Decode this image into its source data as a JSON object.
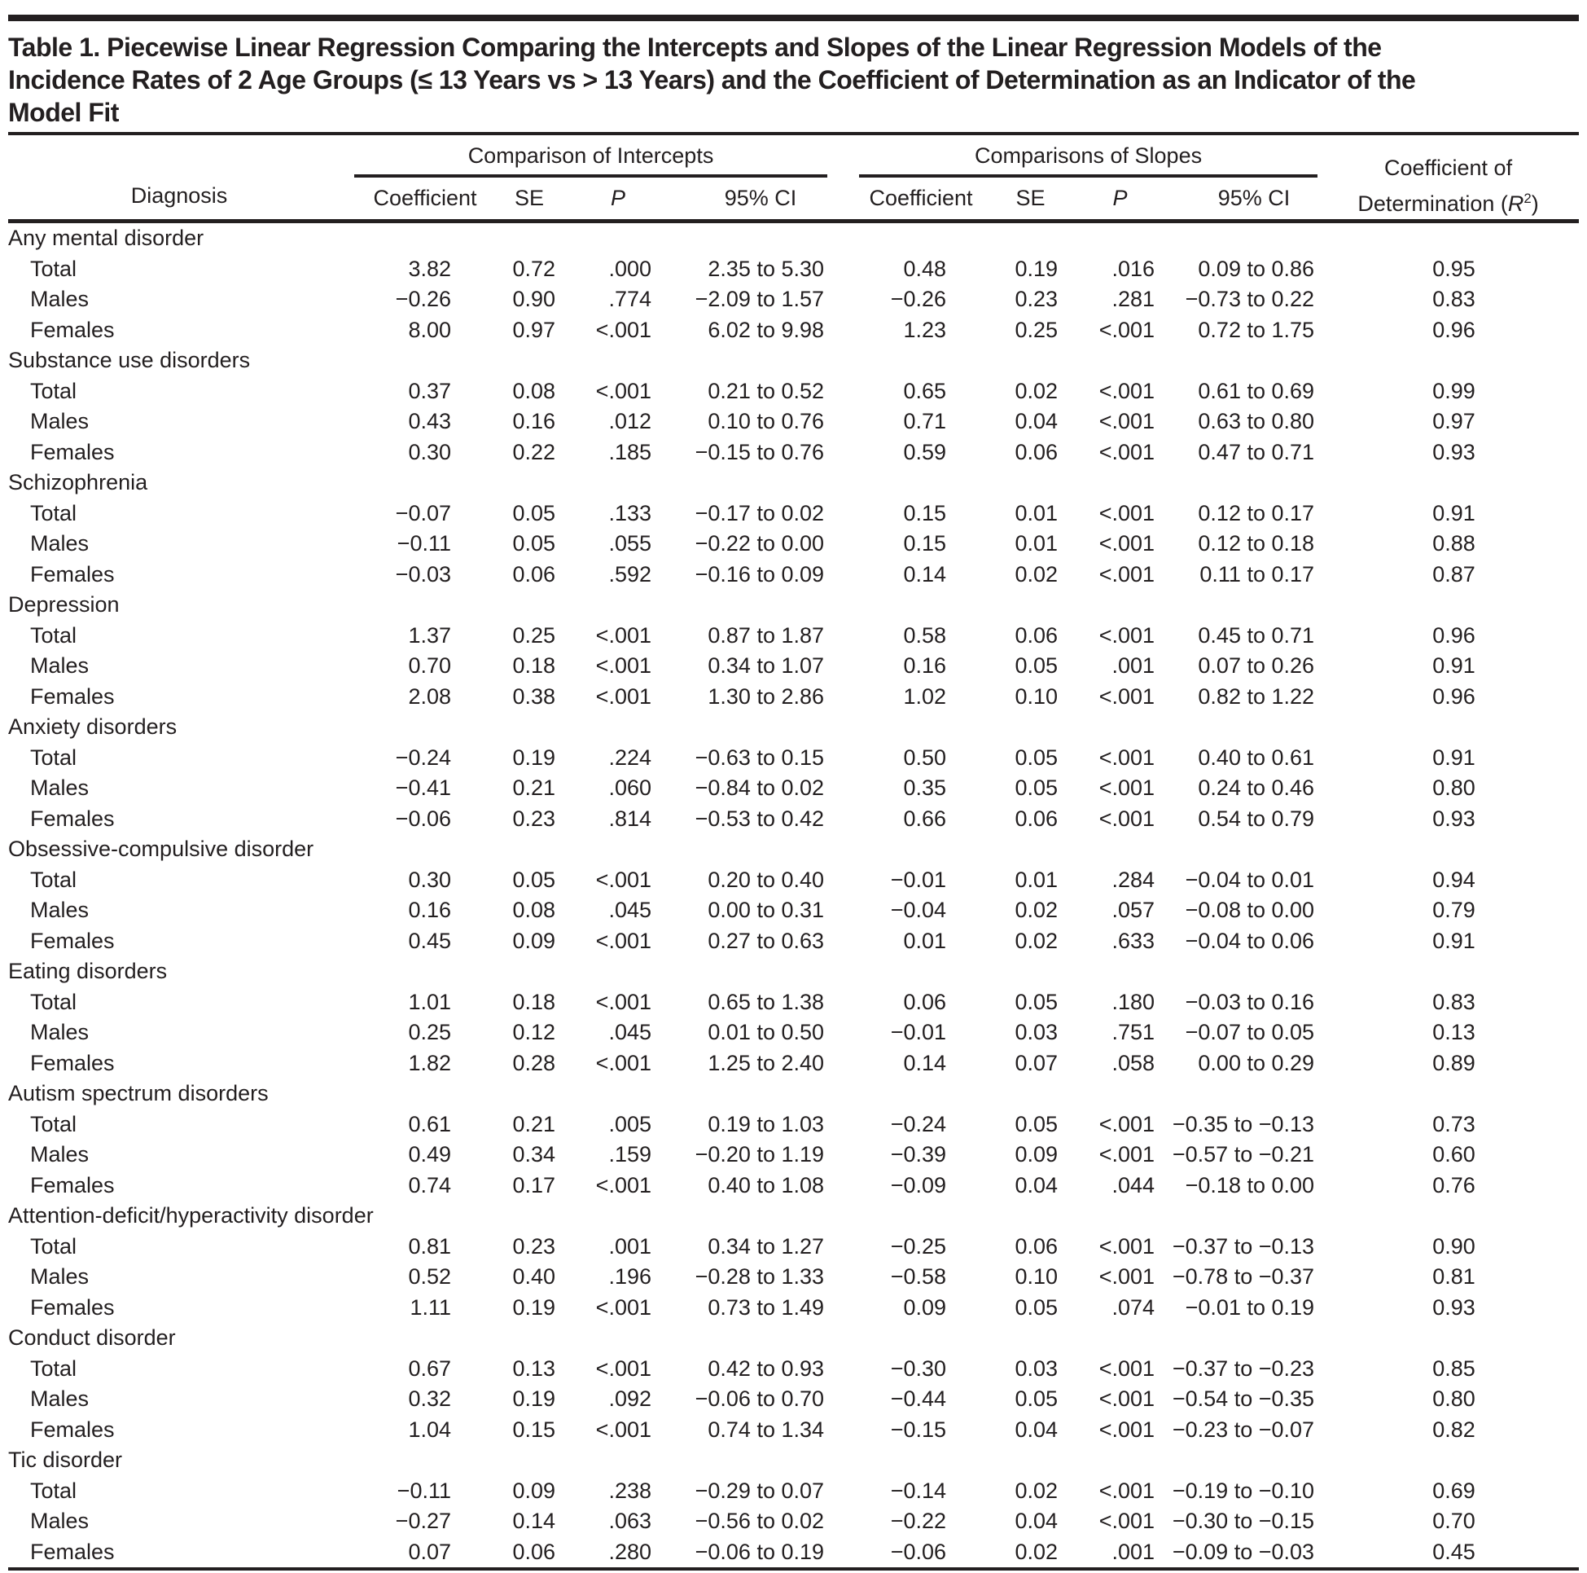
{
  "colors": {
    "ink": "#231f20",
    "background": "#ffffff"
  },
  "title_lines": [
    "Table 1. Piecewise Linear Regression Comparing the Intercepts and Slopes of the Linear Regression Models of the",
    "Incidence Rates of 2 Age Groups (≤ 13 Years vs > 13 Years) and the Coefficient of Determination as an Indicator of the",
    "Model Fit"
  ],
  "header": {
    "diagnosis": "Diagnosis",
    "group_intercepts": "Comparison of Intercepts",
    "group_slopes": "Comparisons of Slopes",
    "sub": {
      "coefficient": "Coefficient",
      "se": "SE",
      "p": "P",
      "ci": "95% CI"
    },
    "r2": {
      "line1": "Coefficient of",
      "prefix": "Determination (",
      "symbol": "R",
      "sup": "2",
      "close": ")"
    }
  },
  "table": {
    "groups": [
      {
        "label": "Any mental disorder",
        "rows": [
          {
            "label": "Total",
            "intercept": {
              "coef": "3.82",
              "se": "0.72",
              "p": ".000",
              "ci": "2.35 to 5.30"
            },
            "slope": {
              "coef": "0.48",
              "se": "0.19",
              "p": ".016",
              "ci": "0.09 to 0.86"
            },
            "r2": "0.95"
          },
          {
            "label": "Males",
            "intercept": {
              "coef": "−0.26",
              "se": "0.90",
              "p": ".774",
              "ci": "−2.09 to 1.57"
            },
            "slope": {
              "coef": "−0.26",
              "se": "0.23",
              "p": ".281",
              "ci": "−0.73 to 0.22"
            },
            "r2": "0.83"
          },
          {
            "label": "Females",
            "intercept": {
              "coef": "8.00",
              "se": "0.97",
              "p": "<.001",
              "ci": "6.02 to 9.98"
            },
            "slope": {
              "coef": "1.23",
              "se": "0.25",
              "p": "<.001",
              "ci": "0.72 to 1.75"
            },
            "r2": "0.96"
          }
        ]
      },
      {
        "label": "Substance use disorders",
        "rows": [
          {
            "label": "Total",
            "intercept": {
              "coef": "0.37",
              "se": "0.08",
              "p": "<.001",
              "ci": "0.21 to 0.52"
            },
            "slope": {
              "coef": "0.65",
              "se": "0.02",
              "p": "<.001",
              "ci": "0.61 to 0.69"
            },
            "r2": "0.99"
          },
          {
            "label": "Males",
            "intercept": {
              "coef": "0.43",
              "se": "0.16",
              "p": ".012",
              "ci": "0.10 to 0.76"
            },
            "slope": {
              "coef": "0.71",
              "se": "0.04",
              "p": "<.001",
              "ci": "0.63 to 0.80"
            },
            "r2": "0.97"
          },
          {
            "label": "Females",
            "intercept": {
              "coef": "0.30",
              "se": "0.22",
              "p": ".185",
              "ci": "−0.15 to 0.76"
            },
            "slope": {
              "coef": "0.59",
              "se": "0.06",
              "p": "<.001",
              "ci": "0.47 to 0.71"
            },
            "r2": "0.93"
          }
        ]
      },
      {
        "label": "Schizophrenia",
        "rows": [
          {
            "label": "Total",
            "intercept": {
              "coef": "−0.07",
              "se": "0.05",
              "p": ".133",
              "ci": "−0.17 to 0.02"
            },
            "slope": {
              "coef": "0.15",
              "se": "0.01",
              "p": "<.001",
              "ci": "0.12 to 0.17"
            },
            "r2": "0.91"
          },
          {
            "label": "Males",
            "intercept": {
              "coef": "−0.11",
              "se": "0.05",
              "p": ".055",
              "ci": "−0.22 to 0.00"
            },
            "slope": {
              "coef": "0.15",
              "se": "0.01",
              "p": "<.001",
              "ci": "0.12 to 0.18"
            },
            "r2": "0.88"
          },
          {
            "label": "Females",
            "intercept": {
              "coef": "−0.03",
              "se": "0.06",
              "p": ".592",
              "ci": "−0.16 to 0.09"
            },
            "slope": {
              "coef": "0.14",
              "se": "0.02",
              "p": "<.001",
              "ci": "0.11 to 0.17"
            },
            "r2": "0.87"
          }
        ]
      },
      {
        "label": "Depression",
        "rows": [
          {
            "label": "Total",
            "intercept": {
              "coef": "1.37",
              "se": "0.25",
              "p": "<.001",
              "ci": "0.87 to 1.87"
            },
            "slope": {
              "coef": "0.58",
              "se": "0.06",
              "p": "<.001",
              "ci": "0.45 to 0.71"
            },
            "r2": "0.96"
          },
          {
            "label": "Males",
            "intercept": {
              "coef": "0.70",
              "se": "0.18",
              "p": "<.001",
              "ci": "0.34 to 1.07"
            },
            "slope": {
              "coef": "0.16",
              "se": "0.05",
              "p": ".001",
              "ci": "0.07 to 0.26"
            },
            "r2": "0.91"
          },
          {
            "label": "Females",
            "intercept": {
              "coef": "2.08",
              "se": "0.38",
              "p": "<.001",
              "ci": "1.30 to 2.86"
            },
            "slope": {
              "coef": "1.02",
              "se": "0.10",
              "p": "<.001",
              "ci": "0.82 to 1.22"
            },
            "r2": "0.96"
          }
        ]
      },
      {
        "label": "Anxiety disorders",
        "rows": [
          {
            "label": "Total",
            "intercept": {
              "coef": "−0.24",
              "se": "0.19",
              "p": ".224",
              "ci": "−0.63 to 0.15"
            },
            "slope": {
              "coef": "0.50",
              "se": "0.05",
              "p": "<.001",
              "ci": "0.40 to 0.61"
            },
            "r2": "0.91"
          },
          {
            "label": "Males",
            "intercept": {
              "coef": "−0.41",
              "se": "0.21",
              "p": ".060",
              "ci": "−0.84 to 0.02"
            },
            "slope": {
              "coef": "0.35",
              "se": "0.05",
              "p": "<.001",
              "ci": "0.24 to 0.46"
            },
            "r2": "0.80"
          },
          {
            "label": "Females",
            "intercept": {
              "coef": "−0.06",
              "se": "0.23",
              "p": ".814",
              "ci": "−0.53 to 0.42"
            },
            "slope": {
              "coef": "0.66",
              "se": "0.06",
              "p": "<.001",
              "ci": "0.54 to 0.79"
            },
            "r2": "0.93"
          }
        ]
      },
      {
        "label": "Obsessive-compulsive disorder",
        "rows": [
          {
            "label": "Total",
            "intercept": {
              "coef": "0.30",
              "se": "0.05",
              "p": "<.001",
              "ci": "0.20 to 0.40"
            },
            "slope": {
              "coef": "−0.01",
              "se": "0.01",
              "p": ".284",
              "ci": "−0.04 to 0.01"
            },
            "r2": "0.94"
          },
          {
            "label": "Males",
            "intercept": {
              "coef": "0.16",
              "se": "0.08",
              "p": ".045",
              "ci": "0.00 to 0.31"
            },
            "slope": {
              "coef": "−0.04",
              "se": "0.02",
              "p": ".057",
              "ci": "−0.08 to 0.00"
            },
            "r2": "0.79"
          },
          {
            "label": "Females",
            "intercept": {
              "coef": "0.45",
              "se": "0.09",
              "p": "<.001",
              "ci": "0.27 to 0.63"
            },
            "slope": {
              "coef": "0.01",
              "se": "0.02",
              "p": ".633",
              "ci": "−0.04 to 0.06"
            },
            "r2": "0.91"
          }
        ]
      },
      {
        "label": "Eating disorders",
        "rows": [
          {
            "label": "Total",
            "intercept": {
              "coef": "1.01",
              "se": "0.18",
              "p": "<.001",
              "ci": "0.65 to 1.38"
            },
            "slope": {
              "coef": "0.06",
              "se": "0.05",
              "p": ".180",
              "ci": "−0.03 to 0.16"
            },
            "r2": "0.83"
          },
          {
            "label": "Males",
            "intercept": {
              "coef": "0.25",
              "se": "0.12",
              "p": ".045",
              "ci": "0.01 to 0.50"
            },
            "slope": {
              "coef": "−0.01",
              "se": "0.03",
              "p": ".751",
              "ci": "−0.07 to 0.05"
            },
            "r2": "0.13"
          },
          {
            "label": "Females",
            "intercept": {
              "coef": "1.82",
              "se": "0.28",
              "p": "<.001",
              "ci": "1.25 to 2.40"
            },
            "slope": {
              "coef": "0.14",
              "se": "0.07",
              "p": ".058",
              "ci": "0.00 to 0.29"
            },
            "r2": "0.89"
          }
        ]
      },
      {
        "label": "Autism spectrum disorders",
        "rows": [
          {
            "label": "Total",
            "intercept": {
              "coef": "0.61",
              "se": "0.21",
              "p": ".005",
              "ci": "0.19 to 1.03"
            },
            "slope": {
              "coef": "−0.24",
              "se": "0.05",
              "p": "<.001",
              "ci": "−0.35 to −0.13"
            },
            "r2": "0.73"
          },
          {
            "label": "Males",
            "intercept": {
              "coef": "0.49",
              "se": "0.34",
              "p": ".159",
              "ci": "−0.20 to 1.19"
            },
            "slope": {
              "coef": "−0.39",
              "se": "0.09",
              "p": "<.001",
              "ci": "−0.57 to −0.21"
            },
            "r2": "0.60"
          },
          {
            "label": "Females",
            "intercept": {
              "coef": "0.74",
              "se": "0.17",
              "p": "<.001",
              "ci": "0.40 to 1.08"
            },
            "slope": {
              "coef": "−0.09",
              "se": "0.04",
              "p": ".044",
              "ci": "−0.18 to 0.00"
            },
            "r2": "0.76"
          }
        ]
      },
      {
        "label": "Attention-deficit/hyperactivity disorder",
        "rows": [
          {
            "label": "Total",
            "intercept": {
              "coef": "0.81",
              "se": "0.23",
              "p": ".001",
              "ci": "0.34 to 1.27"
            },
            "slope": {
              "coef": "−0.25",
              "se": "0.06",
              "p": "<.001",
              "ci": "−0.37 to −0.13"
            },
            "r2": "0.90"
          },
          {
            "label": "Males",
            "intercept": {
              "coef": "0.52",
              "se": "0.40",
              "p": ".196",
              "ci": "−0.28 to 1.33"
            },
            "slope": {
              "coef": "−0.58",
              "se": "0.10",
              "p": "<.001",
              "ci": "−0.78 to −0.37"
            },
            "r2": "0.81"
          },
          {
            "label": "Females",
            "intercept": {
              "coef": "1.11",
              "se": "0.19",
              "p": "<.001",
              "ci": "0.73 to 1.49"
            },
            "slope": {
              "coef": "0.09",
              "se": "0.05",
              "p": ".074",
              "ci": "−0.01 to 0.19"
            },
            "r2": "0.93"
          }
        ]
      },
      {
        "label": "Conduct disorder",
        "rows": [
          {
            "label": "Total",
            "intercept": {
              "coef": "0.67",
              "se": "0.13",
              "p": "<.001",
              "ci": "0.42 to 0.93"
            },
            "slope": {
              "coef": "−0.30",
              "se": "0.03",
              "p": "<.001",
              "ci": "−0.37 to −0.23"
            },
            "r2": "0.85"
          },
          {
            "label": "Males",
            "intercept": {
              "coef": "0.32",
              "se": "0.19",
              "p": ".092",
              "ci": "−0.06 to 0.70"
            },
            "slope": {
              "coef": "−0.44",
              "se": "0.05",
              "p": "<.001",
              "ci": "−0.54 to −0.35"
            },
            "r2": "0.80"
          },
          {
            "label": "Females",
            "intercept": {
              "coef": "1.04",
              "se": "0.15",
              "p": "<.001",
              "ci": "0.74 to 1.34"
            },
            "slope": {
              "coef": "−0.15",
              "se": "0.04",
              "p": "<.001",
              "ci": "−0.23 to −0.07"
            },
            "r2": "0.82"
          }
        ]
      },
      {
        "label": "Tic disorder",
        "rows": [
          {
            "label": "Total",
            "intercept": {
              "coef": "−0.11",
              "se": "0.09",
              "p": ".238",
              "ci": "−0.29 to 0.07"
            },
            "slope": {
              "coef": "−0.14",
              "se": "0.02",
              "p": "<.001",
              "ci": "−0.19 to −0.10"
            },
            "r2": "0.69"
          },
          {
            "label": "Males",
            "intercept": {
              "coef": "−0.27",
              "se": "0.14",
              "p": ".063",
              "ci": "−0.56 to 0.02"
            },
            "slope": {
              "coef": "−0.22",
              "se": "0.04",
              "p": "<.001",
              "ci": "−0.30 to −0.15"
            },
            "r2": "0.70"
          },
          {
            "label": "Females",
            "intercept": {
              "coef": "0.07",
              "se": "0.06",
              "p": ".280",
              "ci": "−0.06 to 0.19"
            },
            "slope": {
              "coef": "−0.06",
              "se": "0.02",
              "p": ".001",
              "ci": "−0.09 to −0.03"
            },
            "r2": "0.45"
          }
        ]
      }
    ]
  }
}
